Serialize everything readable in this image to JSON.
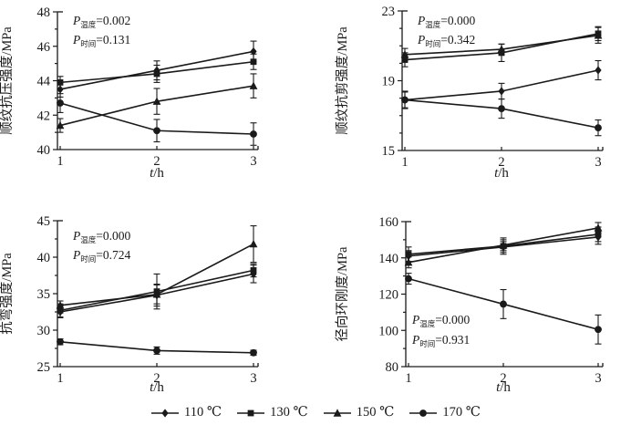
{
  "colors": {
    "ink": "#1a1a1a",
    "background": "#ffffff"
  },
  "legend": {
    "position": "bottom-center",
    "items": [
      {
        "label": "110 ℃",
        "marker": "diamond"
      },
      {
        "label": "130 ℃",
        "marker": "square"
      },
      {
        "label": "150 ℃",
        "marker": "triangle"
      },
      {
        "label": "170 ℃",
        "marker": "circle"
      }
    ]
  },
  "chart_data": [
    {
      "type": "line",
      "position": "top-left",
      "ylabel": "顺纹抗压强度/MPa",
      "xlabel": "t/h",
      "xlim": [
        1,
        3
      ],
      "ylim": [
        40,
        48
      ],
      "xticks": [
        1,
        2,
        3
      ],
      "yticks": [
        40,
        42,
        44,
        46,
        48
      ],
      "yticks_minor": [
        41,
        43,
        45,
        47
      ],
      "grid": false,
      "error_bars": true,
      "annotations": [
        {
          "symbol": "P",
          "sub": "温度",
          "value": "0.002"
        },
        {
          "symbol": "P",
          "sub": "时间",
          "value": "0.131"
        }
      ],
      "x": [
        1,
        2,
        3
      ],
      "series": [
        {
          "name": "110 ℃",
          "marker": "diamond",
          "values": [
            43.5,
            44.6,
            45.7
          ],
          "errors": [
            0.45,
            0.55,
            0.6
          ]
        },
        {
          "name": "130 ℃",
          "marker": "square",
          "values": [
            43.9,
            44.4,
            45.1
          ],
          "errors": [
            0.35,
            0.5,
            0.45
          ]
        },
        {
          "name": "150 ℃",
          "marker": "triangle",
          "values": [
            41.4,
            42.8,
            43.7
          ],
          "errors": [
            0.4,
            0.75,
            0.7
          ]
        },
        {
          "name": "170 ℃",
          "marker": "circle",
          "values": [
            42.7,
            41.1,
            40.9
          ],
          "errors": [
            0.55,
            0.65,
            0.65
          ]
        }
      ]
    },
    {
      "type": "line",
      "position": "top-right",
      "ylabel": "顺纹抗剪强度/MPa",
      "xlabel": "t/h",
      "xlim": [
        1,
        3
      ],
      "ylim": [
        15,
        23
      ],
      "xticks": [
        1,
        2,
        3
      ],
      "yticks": [
        15,
        19,
        23
      ],
      "yticks_minor": [
        16,
        17,
        18,
        20,
        21,
        22
      ],
      "grid": false,
      "error_bars": true,
      "annotations": [
        {
          "symbol": "P",
          "sub": "温度",
          "value": "0.000"
        },
        {
          "symbol": "P",
          "sub": "时间",
          "value": "0.342"
        }
      ],
      "x": [
        1,
        2,
        3
      ],
      "series": [
        {
          "name": "110 ℃",
          "marker": "diamond",
          "values": [
            17.9,
            18.4,
            19.6
          ],
          "errors": [
            0.45,
            0.45,
            0.55
          ]
        },
        {
          "name": "130 ℃",
          "marker": "square",
          "values": [
            20.2,
            20.6,
            21.7
          ],
          "errors": [
            0.4,
            0.5,
            0.4
          ]
        },
        {
          "name": "150 ℃",
          "marker": "triangle",
          "values": [
            20.5,
            20.8,
            21.6
          ],
          "errors": [
            0.35,
            0.3,
            0.45
          ]
        },
        {
          "name": "170 ℃",
          "marker": "circle",
          "values": [
            17.9,
            17.4,
            16.3
          ],
          "errors": [
            0.5,
            0.55,
            0.45
          ]
        }
      ]
    },
    {
      "type": "line",
      "position": "bottom-left",
      "ylabel": "抗弯强度/MPa",
      "xlabel": "t/h",
      "xlim": [
        1,
        3
      ],
      "ylim": [
        25,
        45
      ],
      "xticks": [
        1,
        2,
        3
      ],
      "yticks": [
        25,
        30,
        35,
        40,
        45
      ],
      "yticks_minor": [
        27.5,
        32.5,
        37.5,
        42.5
      ],
      "grid": false,
      "error_bars": true,
      "annotations": [
        {
          "symbol": "P",
          "sub": "温度",
          "value": "0.000"
        },
        {
          "symbol": "P",
          "sub": "时间",
          "value": "0.724"
        }
      ],
      "x": [
        1,
        2,
        3
      ],
      "series": [
        {
          "name": "110 ℃",
          "marker": "diamond",
          "values": [
            32.5,
            34.8,
            37.7
          ],
          "errors": [
            0.8,
            1.5,
            1.2
          ]
        },
        {
          "name": "130 ℃",
          "marker": "square",
          "values": [
            32.7,
            35.3,
            38.2
          ],
          "errors": [
            0.9,
            2.4,
            0.9
          ]
        },
        {
          "name": "150 ℃",
          "marker": "triangle",
          "values": [
            33.4,
            34.9,
            41.8
          ],
          "errors": [
            0.6,
            1.3,
            2.5
          ]
        },
        {
          "name": "170 ℃",
          "marker": "circle",
          "values": [
            28.4,
            27.2,
            26.9
          ],
          "errors": [
            0.4,
            0.5,
            0.35
          ]
        }
      ]
    },
    {
      "type": "line",
      "position": "bottom-right",
      "ylabel": "径向环刚度/MPa",
      "xlabel": "t/h",
      "xlim": [
        1,
        3
      ],
      "ylim": [
        80,
        160
      ],
      "xticks": [
        1,
        2,
        3
      ],
      "yticks": [
        80,
        100,
        120,
        140,
        160
      ],
      "yticks_minor": [
        90,
        110,
        130,
        150
      ],
      "grid": false,
      "error_bars": true,
      "annotations": [
        {
          "symbol": "P",
          "sub": "温度",
          "value": "0.000"
        },
        {
          "symbol": "P",
          "sub": "时间",
          "value": "0.931"
        }
      ],
      "x": [
        1,
        2,
        3
      ],
      "series": [
        {
          "name": "110 ℃",
          "marker": "diamond",
          "values": [
            141,
            146,
            151.5
          ],
          "errors": [
            3,
            3,
            4
          ]
        },
        {
          "name": "130 ℃",
          "marker": "square",
          "values": [
            142,
            146.5,
            153
          ],
          "errors": [
            4,
            4.5,
            4
          ]
        },
        {
          "name": "150 ℃",
          "marker": "triangle",
          "values": [
            137.5,
            147,
            156.5
          ],
          "errors": [
            3,
            3,
            3
          ]
        },
        {
          "name": "170 ℃",
          "marker": "circle",
          "values": [
            128.5,
            114.5,
            100.5
          ],
          "errors": [
            3,
            8,
            8
          ]
        }
      ]
    }
  ]
}
